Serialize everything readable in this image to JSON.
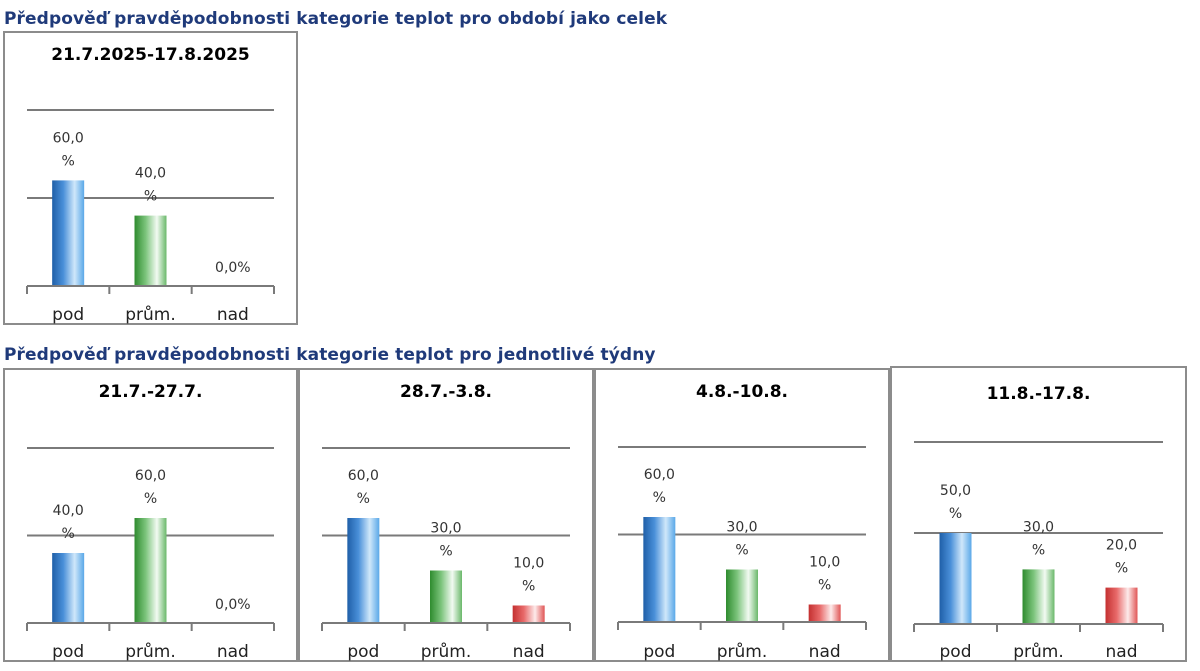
{
  "headings": {
    "period": "Předpověď pravděpodobnosti kategorie teplot pro období jako celek",
    "weekly": "Předpověď pravděpodobnosti kategorie teplot pro jednotlivé týdny"
  },
  "colors": {
    "pod": "#4a90d9",
    "prum": "#5cb85c",
    "nad": "#e05555",
    "heading": "#1f3a7a"
  },
  "chart_data": [
    {
      "type": "bar",
      "title": "21.7.2025-17.8.2025",
      "categories": [
        "pod",
        "prům.",
        "nad"
      ],
      "values": [
        60.0,
        40.0,
        0.0
      ],
      "labels": [
        [
          "60,0",
          "%"
        ],
        [
          "40,0",
          "%"
        ],
        [
          "0,0%"
        ]
      ],
      "ylim": [
        0,
        100
      ],
      "grid": true
    },
    {
      "type": "bar",
      "title": "21.7.-27.7.",
      "categories": [
        "pod",
        "prům.",
        "nad"
      ],
      "values": [
        40.0,
        60.0,
        0.0
      ],
      "labels": [
        [
          "40,0",
          "%"
        ],
        [
          "60,0",
          "%"
        ],
        [
          "0,0%"
        ]
      ],
      "ylim": [
        0,
        100
      ],
      "grid": true
    },
    {
      "type": "bar",
      "title": "28.7.-3.8.",
      "categories": [
        "pod",
        "prům.",
        "nad"
      ],
      "values": [
        60.0,
        30.0,
        10.0
      ],
      "labels": [
        [
          "60,0",
          "%"
        ],
        [
          "30,0",
          "%"
        ],
        [
          "10,0",
          "%"
        ]
      ],
      "ylim": [
        0,
        100
      ],
      "grid": true
    },
    {
      "type": "bar",
      "title": "4.8.-10.8.",
      "categories": [
        "pod",
        "prům.",
        "nad"
      ],
      "values": [
        60.0,
        30.0,
        10.0
      ],
      "labels": [
        [
          "60,0",
          "%"
        ],
        [
          "30,0",
          "%"
        ],
        [
          "10,0",
          "%"
        ]
      ],
      "ylim": [
        0,
        100
      ],
      "grid": true
    },
    {
      "type": "bar",
      "title": "11.8.-17.8.",
      "categories": [
        "pod",
        "prům.",
        "nad"
      ],
      "values": [
        50.0,
        30.0,
        20.0
      ],
      "labels": [
        [
          "50,0",
          "%"
        ],
        [
          "30,0",
          "%"
        ],
        [
          "20,0",
          "%"
        ]
      ],
      "ylim": [
        0,
        100
      ],
      "grid": true
    }
  ]
}
